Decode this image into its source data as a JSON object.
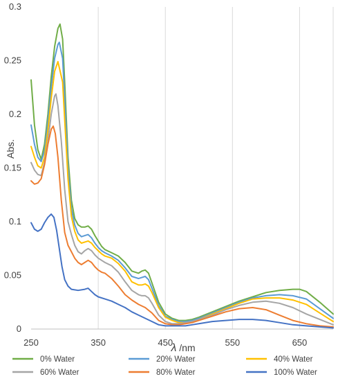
{
  "chart_data": {
    "type": "line",
    "xlabel_symbol": "λ",
    "xlabel_unit": "/nm",
    "ylabel": "Abs.",
    "xlim": [
      250,
      700
    ],
    "ylim": [
      0,
      0.3
    ],
    "x_ticks": [
      "250",
      "350",
      "450",
      "550",
      "650"
    ],
    "y_ticks": [
      "0",
      "0.05",
      "0.1",
      "0.15",
      "0.2",
      "0.25",
      "0.3"
    ],
    "grid": "vertical",
    "legend_position": "bottom",
    "series": [
      {
        "name": "0% Water",
        "color": "#70ad47",
        "points": [
          [
            250,
            0.232
          ],
          [
            255,
            0.19
          ],
          [
            260,
            0.167
          ],
          [
            265,
            0.158
          ],
          [
            270,
            0.172
          ],
          [
            275,
            0.2
          ],
          [
            280,
            0.235
          ],
          [
            285,
            0.263
          ],
          [
            290,
            0.28
          ],
          [
            293,
            0.284
          ],
          [
            297,
            0.27
          ],
          [
            300,
            0.23
          ],
          [
            305,
            0.16
          ],
          [
            310,
            0.12
          ],
          [
            315,
            0.103
          ],
          [
            320,
            0.097
          ],
          [
            325,
            0.095
          ],
          [
            330,
            0.095
          ],
          [
            335,
            0.096
          ],
          [
            340,
            0.093
          ],
          [
            345,
            0.087
          ],
          [
            350,
            0.082
          ],
          [
            355,
            0.077
          ],
          [
            360,
            0.074
          ],
          [
            370,
            0.071
          ],
          [
            380,
            0.068
          ],
          [
            390,
            0.062
          ],
          [
            400,
            0.054
          ],
          [
            410,
            0.052
          ],
          [
            415,
            0.054
          ],
          [
            420,
            0.055
          ],
          [
            425,
            0.052
          ],
          [
            430,
            0.043
          ],
          [
            440,
            0.025
          ],
          [
            450,
            0.014
          ],
          [
            460,
            0.01
          ],
          [
            470,
            0.008
          ],
          [
            480,
            0.008
          ],
          [
            490,
            0.009
          ],
          [
            500,
            0.011
          ],
          [
            520,
            0.016
          ],
          [
            540,
            0.021
          ],
          [
            560,
            0.026
          ],
          [
            580,
            0.03
          ],
          [
            600,
            0.034
          ],
          [
            620,
            0.036
          ],
          [
            640,
            0.037
          ],
          [
            650,
            0.037
          ],
          [
            660,
            0.035
          ],
          [
            680,
            0.025
          ],
          [
            700,
            0.014
          ]
        ]
      },
      {
        "name": "20% Water",
        "color": "#5b9bd5",
        "points": [
          [
            250,
            0.19
          ],
          [
            255,
            0.172
          ],
          [
            260,
            0.16
          ],
          [
            265,
            0.156
          ],
          [
            270,
            0.166
          ],
          [
            275,
            0.193
          ],
          [
            280,
            0.225
          ],
          [
            285,
            0.252
          ],
          [
            290,
            0.265
          ],
          [
            292,
            0.267
          ],
          [
            297,
            0.252
          ],
          [
            300,
            0.215
          ],
          [
            305,
            0.15
          ],
          [
            310,
            0.112
          ],
          [
            315,
            0.097
          ],
          [
            320,
            0.089
          ],
          [
            325,
            0.086
          ],
          [
            330,
            0.087
          ],
          [
            335,
            0.088
          ],
          [
            340,
            0.085
          ],
          [
            345,
            0.08
          ],
          [
            350,
            0.076
          ],
          [
            355,
            0.073
          ],
          [
            360,
            0.071
          ],
          [
            370,
            0.068
          ],
          [
            380,
            0.064
          ],
          [
            390,
            0.057
          ],
          [
            400,
            0.049
          ],
          [
            410,
            0.047
          ],
          [
            415,
            0.048
          ],
          [
            420,
            0.049
          ],
          [
            425,
            0.046
          ],
          [
            430,
            0.038
          ],
          [
            440,
            0.022
          ],
          [
            450,
            0.012
          ],
          [
            460,
            0.009
          ],
          [
            470,
            0.007
          ],
          [
            480,
            0.007
          ],
          [
            490,
            0.008
          ],
          [
            500,
            0.01
          ],
          [
            520,
            0.015
          ],
          [
            540,
            0.02
          ],
          [
            560,
            0.025
          ],
          [
            580,
            0.029
          ],
          [
            600,
            0.031
          ],
          [
            620,
            0.032
          ],
          [
            640,
            0.031
          ],
          [
            660,
            0.028
          ],
          [
            680,
            0.019
          ],
          [
            700,
            0.01
          ]
        ]
      },
      {
        "name": "40% Water",
        "color": "#ffc000",
        "points": [
          [
            250,
            0.17
          ],
          [
            255,
            0.16
          ],
          [
            260,
            0.152
          ],
          [
            265,
            0.15
          ],
          [
            270,
            0.16
          ],
          [
            275,
            0.185
          ],
          [
            280,
            0.215
          ],
          [
            285,
            0.24
          ],
          [
            290,
            0.249
          ],
          [
            297,
            0.23
          ],
          [
            300,
            0.195
          ],
          [
            305,
            0.14
          ],
          [
            310,
            0.105
          ],
          [
            315,
            0.091
          ],
          [
            320,
            0.083
          ],
          [
            325,
            0.08
          ],
          [
            330,
            0.081
          ],
          [
            335,
            0.082
          ],
          [
            340,
            0.08
          ],
          [
            345,
            0.076
          ],
          [
            350,
            0.073
          ],
          [
            355,
            0.07
          ],
          [
            360,
            0.068
          ],
          [
            370,
            0.066
          ],
          [
            380,
            0.061
          ],
          [
            390,
            0.054
          ],
          [
            400,
            0.044
          ],
          [
            410,
            0.041
          ],
          [
            415,
            0.041
          ],
          [
            420,
            0.042
          ],
          [
            425,
            0.04
          ],
          [
            430,
            0.034
          ],
          [
            440,
            0.02
          ],
          [
            450,
            0.011
          ],
          [
            460,
            0.008
          ],
          [
            470,
            0.006
          ],
          [
            480,
            0.006
          ],
          [
            490,
            0.007
          ],
          [
            500,
            0.009
          ],
          [
            520,
            0.014
          ],
          [
            540,
            0.019
          ],
          [
            560,
            0.024
          ],
          [
            580,
            0.028
          ],
          [
            600,
            0.029
          ],
          [
            620,
            0.029
          ],
          [
            640,
            0.027
          ],
          [
            660,
            0.023
          ],
          [
            680,
            0.015
          ],
          [
            700,
            0.007
          ]
        ]
      },
      {
        "name": "60% Water",
        "color": "#a5a5a5",
        "points": [
          [
            250,
            0.155
          ],
          [
            255,
            0.148
          ],
          [
            260,
            0.144
          ],
          [
            265,
            0.143
          ],
          [
            270,
            0.155
          ],
          [
            275,
            0.175
          ],
          [
            280,
            0.2
          ],
          [
            285,
            0.217
          ],
          [
            287,
            0.219
          ],
          [
            290,
            0.208
          ],
          [
            295,
            0.175
          ],
          [
            300,
            0.13
          ],
          [
            305,
            0.1
          ],
          [
            310,
            0.088
          ],
          [
            315,
            0.078
          ],
          [
            320,
            0.072
          ],
          [
            325,
            0.07
          ],
          [
            330,
            0.073
          ],
          [
            335,
            0.075
          ],
          [
            340,
            0.073
          ],
          [
            345,
            0.069
          ],
          [
            350,
            0.066
          ],
          [
            355,
            0.064
          ],
          [
            360,
            0.062
          ],
          [
            370,
            0.059
          ],
          [
            380,
            0.053
          ],
          [
            390,
            0.044
          ],
          [
            400,
            0.036
          ],
          [
            410,
            0.032
          ],
          [
            415,
            0.031
          ],
          [
            420,
            0.031
          ],
          [
            425,
            0.029
          ],
          [
            430,
            0.024
          ],
          [
            440,
            0.013
          ],
          [
            450,
            0.007
          ],
          [
            460,
            0.005
          ],
          [
            470,
            0.005
          ],
          [
            480,
            0.006
          ],
          [
            490,
            0.007
          ],
          [
            500,
            0.009
          ],
          [
            520,
            0.013
          ],
          [
            540,
            0.018
          ],
          [
            560,
            0.022
          ],
          [
            580,
            0.025
          ],
          [
            600,
            0.026
          ],
          [
            620,
            0.024
          ],
          [
            640,
            0.02
          ],
          [
            660,
            0.014
          ],
          [
            680,
            0.009
          ],
          [
            700,
            0.004
          ]
        ]
      },
      {
        "name": "80% Water",
        "color": "#ed7d31",
        "points": [
          [
            250,
            0.138
          ],
          [
            255,
            0.135
          ],
          [
            260,
            0.136
          ],
          [
            265,
            0.14
          ],
          [
            270,
            0.153
          ],
          [
            275,
            0.172
          ],
          [
            280,
            0.186
          ],
          [
            283,
            0.189
          ],
          [
            286,
            0.182
          ],
          [
            290,
            0.16
          ],
          [
            295,
            0.12
          ],
          [
            300,
            0.09
          ],
          [
            305,
            0.078
          ],
          [
            310,
            0.072
          ],
          [
            315,
            0.066
          ],
          [
            320,
            0.062
          ],
          [
            325,
            0.06
          ],
          [
            330,
            0.062
          ],
          [
            335,
            0.064
          ],
          [
            340,
            0.062
          ],
          [
            345,
            0.058
          ],
          [
            350,
            0.055
          ],
          [
            355,
            0.053
          ],
          [
            360,
            0.052
          ],
          [
            370,
            0.047
          ],
          [
            380,
            0.04
          ],
          [
            390,
            0.032
          ],
          [
            400,
            0.027
          ],
          [
            410,
            0.023
          ],
          [
            420,
            0.02
          ],
          [
            430,
            0.015
          ],
          [
            440,
            0.008
          ],
          [
            450,
            0.005
          ],
          [
            460,
            0.004
          ],
          [
            470,
            0.004
          ],
          [
            480,
            0.005
          ],
          [
            490,
            0.006
          ],
          [
            500,
            0.008
          ],
          [
            520,
            0.012
          ],
          [
            540,
            0.016
          ],
          [
            560,
            0.019
          ],
          [
            580,
            0.02
          ],
          [
            600,
            0.018
          ],
          [
            620,
            0.013
          ],
          [
            640,
            0.008
          ],
          [
            660,
            0.005
          ],
          [
            680,
            0.003
          ],
          [
            700,
            0.002
          ]
        ]
      },
      {
        "name": "100% Water",
        "color": "#4472c4",
        "points": [
          [
            250,
            0.099
          ],
          [
            255,
            0.093
          ],
          [
            260,
            0.091
          ],
          [
            265,
            0.093
          ],
          [
            270,
            0.099
          ],
          [
            275,
            0.104
          ],
          [
            280,
            0.107
          ],
          [
            284,
            0.104
          ],
          [
            288,
            0.092
          ],
          [
            292,
            0.075
          ],
          [
            296,
            0.058
          ],
          [
            300,
            0.046
          ],
          [
            305,
            0.04
          ],
          [
            310,
            0.037
          ],
          [
            320,
            0.036
          ],
          [
            330,
            0.037
          ],
          [
            335,
            0.038
          ],
          [
            340,
            0.035
          ],
          [
            345,
            0.032
          ],
          [
            350,
            0.03
          ],
          [
            360,
            0.028
          ],
          [
            370,
            0.026
          ],
          [
            380,
            0.023
          ],
          [
            390,
            0.02
          ],
          [
            400,
            0.016
          ],
          [
            410,
            0.013
          ],
          [
            420,
            0.01
          ],
          [
            430,
            0.007
          ],
          [
            440,
            0.004
          ],
          [
            450,
            0.003
          ],
          [
            460,
            0.003
          ],
          [
            470,
            0.003
          ],
          [
            480,
            0.003
          ],
          [
            490,
            0.004
          ],
          [
            500,
            0.005
          ],
          [
            520,
            0.007
          ],
          [
            540,
            0.008
          ],
          [
            560,
            0.009
          ],
          [
            580,
            0.009
          ],
          [
            600,
            0.008
          ],
          [
            620,
            0.006
          ],
          [
            640,
            0.004
          ],
          [
            660,
            0.003
          ],
          [
            680,
            0.002
          ],
          [
            700,
            0.001
          ]
        ]
      }
    ]
  }
}
